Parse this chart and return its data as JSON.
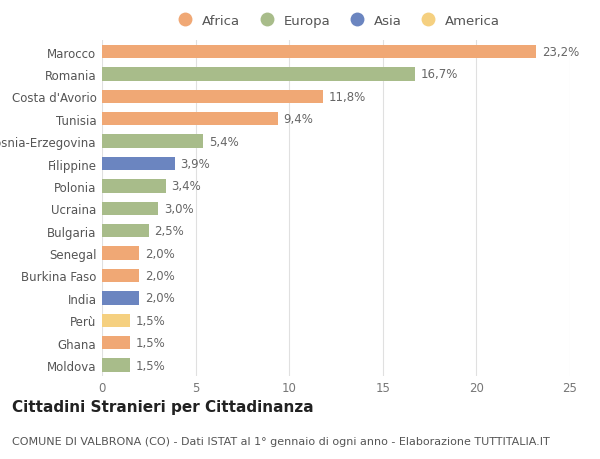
{
  "countries": [
    "Marocco",
    "Romania",
    "Costa d'Avorio",
    "Tunisia",
    "Bosnia-Erzegovina",
    "Filippine",
    "Polonia",
    "Ucraina",
    "Bulgaria",
    "Senegal",
    "Burkina Faso",
    "India",
    "Perù",
    "Ghana",
    "Moldova"
  ],
  "values": [
    23.2,
    16.7,
    11.8,
    9.4,
    5.4,
    3.9,
    3.4,
    3.0,
    2.5,
    2.0,
    2.0,
    2.0,
    1.5,
    1.5,
    1.5
  ],
  "labels": [
    "23,2%",
    "16,7%",
    "11,8%",
    "9,4%",
    "5,4%",
    "3,9%",
    "3,4%",
    "3,0%",
    "2,5%",
    "2,0%",
    "2,0%",
    "2,0%",
    "1,5%",
    "1,5%",
    "1,5%"
  ],
  "continents": [
    "Africa",
    "Europa",
    "Africa",
    "Africa",
    "Europa",
    "Asia",
    "Europa",
    "Europa",
    "Europa",
    "Africa",
    "Africa",
    "Asia",
    "America",
    "Africa",
    "Europa"
  ],
  "colors": {
    "Africa": "#F0A875",
    "Europa": "#A8BC8A",
    "Asia": "#6B85C0",
    "America": "#F5D080"
  },
  "legend_order": [
    "Africa",
    "Europa",
    "Asia",
    "America"
  ],
  "legend_colors": [
    "#F0A875",
    "#A8BC8A",
    "#6B85C0",
    "#F5D080"
  ],
  "title": "Cittadini Stranieri per Cittadinanza",
  "subtitle": "COMUNE DI VALBRONA (CO) - Dati ISTAT al 1° gennaio di ogni anno - Elaborazione TUTTITALIA.IT",
  "xlim": [
    0,
    25
  ],
  "xticks": [
    0,
    5,
    10,
    15,
    20,
    25
  ],
  "bg_color": "#ffffff",
  "grid_color": "#e0e0e0",
  "bar_height": 0.6,
  "label_fontsize": 8.5,
  "tick_fontsize": 8.5,
  "title_fontsize": 11,
  "subtitle_fontsize": 8
}
